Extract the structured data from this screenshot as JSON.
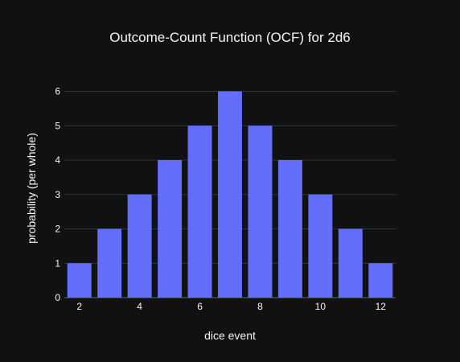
{
  "chart_data": {
    "type": "bar",
    "title": "Outcome-Count Function (OCF) for 2d6",
    "xlabel": "dice event",
    "ylabel": "probability (per whole)",
    "x": [
      2,
      3,
      4,
      5,
      6,
      7,
      8,
      9,
      10,
      11,
      12
    ],
    "values": [
      1,
      2,
      3,
      4,
      5,
      6,
      5,
      4,
      3,
      2,
      1
    ],
    "xticks": [
      2,
      4,
      6,
      8,
      10,
      12
    ],
    "yticks": [
      0,
      1,
      2,
      3,
      4,
      5,
      6
    ],
    "xlim": [
      1.5,
      12.5
    ],
    "ylim": [
      0,
      6.316
    ],
    "grid": true,
    "bar_color": "#636efa",
    "background": "#111111"
  }
}
